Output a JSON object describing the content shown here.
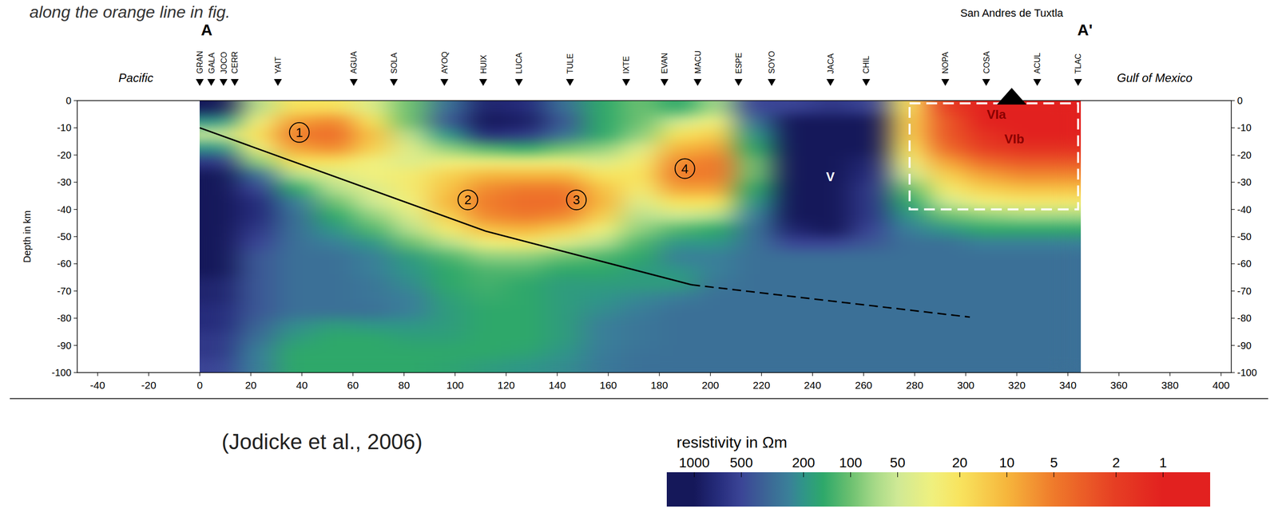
{
  "chart_data": {
    "type": "heatmap",
    "title": "along the orange line in fig.",
    "source": "(Jodicke et al., 2006)",
    "ylabel": "Depth in km",
    "xlim": [
      -48,
      404
    ],
    "xticks": [
      -40,
      -20,
      0,
      20,
      40,
      60,
      80,
      100,
      120,
      140,
      160,
      180,
      200,
      220,
      240,
      260,
      280,
      300,
      320,
      340,
      360,
      380,
      400
    ],
    "ylim": [
      -100,
      0
    ],
    "yticks": [
      0,
      -10,
      -20,
      -30,
      -40,
      -50,
      -60,
      -70,
      -80,
      -90,
      -100
    ],
    "profile_labels": [
      {
        "text": "A",
        "x": 0
      },
      {
        "text": "A'",
        "x": 344
      }
    ],
    "side_labels": [
      {
        "text": "Pacific",
        "x": -25
      },
      {
        "text": "Gulf of Mexico",
        "x": 374
      }
    ],
    "volcano": {
      "text": "San Andres de Tuxtla",
      "x": 318
    },
    "stations": {
      "names": [
        "GRAN",
        "GALA",
        "JOCO",
        "CERR",
        "YAIT",
        "AGUA",
        "SOLA",
        "AYOQ",
        "HUIX",
        "LUCA",
        "TULE",
        "IXTE",
        "EVAN",
        "MACU",
        "ESPE",
        "SOYO",
        "JACA",
        "CHIL",
        "NOPA",
        "COSA",
        "ACUL",
        "TLAC"
      ],
      "x": [
        0,
        4.5,
        9.3,
        13.7,
        30.6,
        60.3,
        76,
        95.8,
        111,
        125,
        145,
        167,
        182,
        195,
        211,
        224,
        247,
        261,
        292,
        308,
        328,
        344
      ]
    },
    "cells": {
      "x": [
        7.5,
        22.5,
        37.5,
        52.5,
        67.5,
        82.5,
        97.5,
        112.5,
        127.5,
        142.5,
        157.5,
        172.5,
        187.5,
        202.5,
        217.5,
        232.5,
        247.5,
        262.5,
        277.5,
        292.5,
        307.5,
        322.5,
        337.5
      ],
      "depth": [
        -2.5,
        -7.5,
        -12.5,
        -17.5,
        -22.5,
        -27.5,
        -32.5,
        -37.5,
        -42.5,
        -47.5,
        -52.5,
        -57.5,
        -62.5,
        -67.5,
        -72.5,
        -77.5,
        -82.5,
        -87.5,
        -92.5,
        -97.5
      ],
      "values": [
        [
          1000,
          60,
          20,
          20,
          40,
          100,
          300,
          800,
          700,
          300,
          150,
          100,
          150,
          70,
          500,
          500,
          600,
          500,
          20,
          2,
          1,
          1,
          1
        ],
        [
          200,
          30,
          8,
          6,
          20,
          100,
          400,
          1000,
          900,
          400,
          150,
          100,
          50,
          30,
          300,
          1000,
          1000,
          1000,
          15,
          3,
          1,
          1,
          1
        ],
        [
          50,
          20,
          5,
          4,
          12,
          60,
          200,
          700,
          600,
          300,
          150,
          80,
          20,
          15,
          200,
          1000,
          1000,
          1000,
          15,
          3,
          1.5,
          1,
          1
        ],
        [
          200,
          30,
          8,
          6,
          15,
          40,
          80,
          120,
          150,
          100,
          80,
          40,
          10,
          8,
          150,
          1000,
          1000,
          1000,
          20,
          4,
          2,
          1.5,
          1.5
        ],
        [
          600,
          80,
          20,
          20,
          30,
          40,
          30,
          30,
          30,
          30,
          40,
          25,
          6,
          5,
          100,
          1000,
          1000,
          800,
          30,
          8,
          4,
          3,
          3
        ],
        [
          1000,
          300,
          60,
          40,
          30,
          25,
          15,
          10,
          10,
          10,
          20,
          20,
          5,
          5,
          100,
          1000,
          1000,
          700,
          50,
          15,
          8,
          6,
          6
        ],
        [
          1000,
          500,
          150,
          60,
          40,
          25,
          12,
          6,
          5,
          5,
          12,
          25,
          8,
          8,
          150,
          1000,
          1000,
          600,
          100,
          25,
          15,
          12,
          12
        ],
        [
          1000,
          700,
          250,
          100,
          50,
          30,
          10,
          5,
          4,
          4,
          10,
          40,
          20,
          20,
          200,
          1000,
          1000,
          600,
          150,
          50,
          30,
          25,
          25
        ],
        [
          1000,
          700,
          300,
          150,
          80,
          40,
          15,
          6,
          5,
          6,
          15,
          60,
          50,
          60,
          250,
          1000,
          1000,
          600,
          200,
          100,
          80,
          70,
          70
        ],
        [
          1000,
          600,
          300,
          200,
          120,
          60,
          25,
          12,
          10,
          15,
          30,
          80,
          120,
          150,
          300,
          800,
          1000,
          500,
          250,
          200,
          150,
          150,
          150
        ],
        [
          1000,
          500,
          300,
          250,
          200,
          100,
          60,
          30,
          25,
          40,
          60,
          120,
          200,
          200,
          300,
          500,
          500,
          400,
          300,
          300,
          250,
          250,
          250
        ],
        [
          1000,
          400,
          300,
          300,
          250,
          180,
          120,
          80,
          80,
          100,
          120,
          150,
          250,
          250,
          300,
          300,
          300,
          300,
          300,
          300,
          300,
          300,
          300
        ],
        [
          1000,
          400,
          300,
          300,
          250,
          200,
          150,
          120,
          120,
          150,
          150,
          180,
          200,
          250,
          300,
          300,
          300,
          300,
          300,
          300,
          300,
          300,
          300
        ],
        [
          800,
          400,
          300,
          300,
          280,
          220,
          150,
          130,
          150,
          180,
          180,
          180,
          180,
          280,
          300,
          300,
          300,
          300,
          300,
          300,
          300,
          300,
          300
        ],
        [
          800,
          400,
          300,
          300,
          280,
          250,
          170,
          140,
          150,
          180,
          200,
          230,
          260,
          300,
          300,
          300,
          300,
          300,
          300,
          300,
          300,
          300,
          300
        ],
        [
          700,
          400,
          300,
          300,
          300,
          250,
          180,
          150,
          150,
          180,
          220,
          260,
          300,
          300,
          300,
          300,
          300,
          300,
          300,
          300,
          300,
          300,
          300
        ],
        [
          700,
          350,
          220,
          180,
          200,
          200,
          180,
          150,
          150,
          180,
          250,
          280,
          300,
          300,
          300,
          300,
          300,
          300,
          300,
          300,
          300,
          300,
          300
        ],
        [
          600,
          300,
          180,
          150,
          150,
          170,
          170,
          150,
          150,
          180,
          250,
          280,
          300,
          300,
          300,
          300,
          300,
          300,
          300,
          300,
          300,
          300,
          300
        ],
        [
          600,
          250,
          150,
          150,
          150,
          150,
          150,
          150,
          160,
          200,
          260,
          290,
          300,
          300,
          300,
          300,
          300,
          300,
          300,
          300,
          300,
          300,
          300
        ],
        [
          500,
          250,
          150,
          150,
          150,
          150,
          160,
          180,
          200,
          220,
          270,
          300,
          300,
          300,
          300,
          300,
          300,
          300,
          300,
          300,
          300,
          300,
          300
        ]
      ]
    },
    "colorbar": {
      "label": "resistivity in Ωm",
      "range": [
        1500,
        0.5
      ],
      "ticks": [
        1000,
        500,
        200,
        100,
        50,
        20,
        10,
        5,
        2,
        1
      ]
    },
    "lines": [
      {
        "x": [
          0,
          112,
          192.5
        ],
        "y": [
          -10,
          -48,
          -67.7
        ],
        "line_style": "solid",
        "color": "#000000"
      },
      {
        "x": [
          192.5,
          301.6
        ],
        "y": [
          -67.7,
          -79.6
        ],
        "line_style": "dashed",
        "color": "#000000"
      }
    ],
    "circled_labels": [
      {
        "text": "1",
        "x": 39,
        "y": -11.7
      },
      {
        "text": "2",
        "x": 105,
        "y": -36.5
      },
      {
        "text": "3",
        "x": 147.5,
        "y": -36.5
      },
      {
        "text": "4",
        "x": 190,
        "y": -25
      }
    ],
    "labels": [
      {
        "text": "V",
        "x": 247,
        "y": -28,
        "color": "#ffffff"
      },
      {
        "text": "VIa",
        "x": 312,
        "y": -5,
        "color": "#8b0000"
      },
      {
        "text": "VIb",
        "x": 319,
        "y": -14,
        "color": "#8b0000"
      }
    ],
    "box": {
      "x": [
        278,
        344
      ],
      "y": [
        -40,
        -1
      ],
      "color": "#ffffff",
      "line_style": "dashed"
    }
  }
}
